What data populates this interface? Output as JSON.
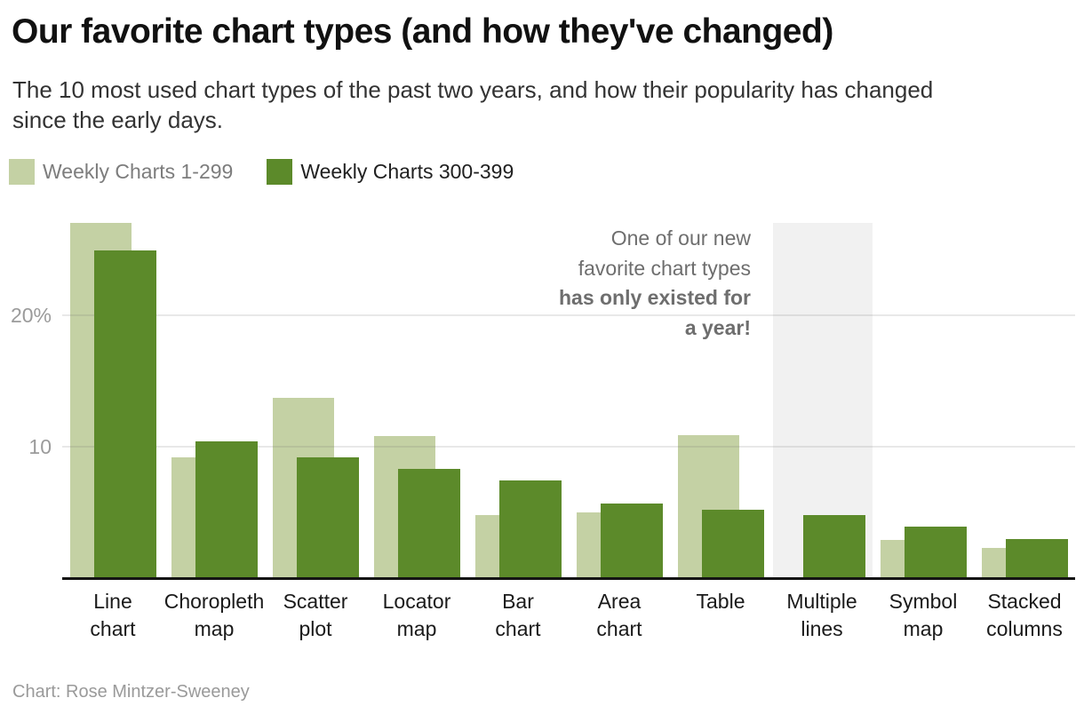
{
  "header": {
    "title": "Our favorite chart types (and how they've changed)",
    "subtitle_line1": "The 10 most used chart types of the past two years, and how their popularity has changed",
    "subtitle_line2": "since the early days."
  },
  "legend": {
    "items": [
      {
        "label": "Weekly Charts 1-299",
        "color": "#c4d1a4",
        "text_color": "#7d7d7d"
      },
      {
        "label": "Weekly Charts 300-399",
        "color": "#5c8a2a",
        "text_color": "#212121"
      }
    ]
  },
  "annotation": {
    "color": "#6e6e6e",
    "lines": [
      {
        "text": "One of our new",
        "bold": false
      },
      {
        "text": "favorite chart types",
        "bold": false
      },
      {
        "text": "has only existed for",
        "bold": true
      },
      {
        "text": "a year!",
        "bold": true
      }
    ]
  },
  "chart_data": {
    "type": "bar",
    "unit": "percent",
    "categories": [
      "Line chart",
      "Choropleth map",
      "Scatter plot",
      "Locator map",
      "Bar chart",
      "Area chart",
      "Table",
      "Multiple lines",
      "Symbol map",
      "Stacked columns"
    ],
    "category_label_lines": [
      [
        "Line",
        "chart"
      ],
      [
        "Choropleth",
        "map"
      ],
      [
        "Scatter",
        "plot"
      ],
      [
        "Locator",
        "map"
      ],
      [
        "Bar",
        "chart"
      ],
      [
        "Area",
        "chart"
      ],
      [
        "Table"
      ],
      [
        "Multiple",
        "lines"
      ],
      [
        "Symbol",
        "map"
      ],
      [
        "Stacked",
        "columns"
      ]
    ],
    "series": [
      {
        "name": "Weekly Charts 1-299",
        "color": "#c4d1a4",
        "values": [
          27.0,
          9.2,
          13.7,
          10.8,
          4.8,
          5.0,
          10.9,
          null,
          2.9,
          2.3
        ]
      },
      {
        "name": "Weekly Charts 300-399",
        "color": "#5c8a2a",
        "values": [
          24.9,
          10.4,
          9.2,
          8.3,
          7.4,
          5.7,
          5.2,
          4.8,
          3.9,
          3.0
        ]
      }
    ],
    "y_ticks": [
      {
        "value": 10,
        "label": "10"
      },
      {
        "value": 20,
        "label": "20%"
      }
    ],
    "ylim": [
      0,
      27
    ],
    "grid": true,
    "legend_position": "top-left",
    "highlight_category_index": 7,
    "highlight_color": "#f1f1f1",
    "axis_color": "#141414",
    "tick_label_color": "#9b9b9b"
  },
  "footer": {
    "credit": "Chart: Rose Mintzer-Sweeney"
  }
}
